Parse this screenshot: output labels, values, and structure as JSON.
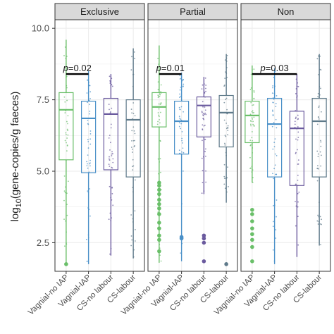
{
  "chart_data": {
    "type": "box",
    "ylabel_prefix": "log",
    "ylabel_sub": "10",
    "ylabel_suffix": "(gene-copies/g faeces)",
    "ylim": [
      1.5,
      10.3
    ],
    "yticks": [
      2.5,
      5.0,
      7.5,
      10.0
    ],
    "ytick_labels": [
      "2.5",
      "5.0",
      "7.5",
      "10.0"
    ],
    "grid": true,
    "categories": [
      "Vagnial-no IAP",
      "Vagnial-IAP",
      "CS-no labour",
      "CS-labour"
    ],
    "category_colors": [
      "#6abf69",
      "#4a90c8",
      "#6a5a9e",
      "#5f7a8a"
    ],
    "panels": [
      {
        "title": "Exclusive",
        "boxes": [
          {
            "category": "Vagnial-no IAP",
            "q1": 5.4,
            "median": 7.15,
            "q3": 7.75,
            "whisker_low": 1.75,
            "whisker_high": 9.6,
            "outliers": [
              1.75
            ]
          },
          {
            "category": "Vagnial-IAP",
            "q1": 4.95,
            "median": 6.85,
            "q3": 7.45,
            "whisker_low": 1.75,
            "whisker_high": 8.5,
            "outliers": []
          },
          {
            "category": "CS-no labour",
            "q1": 5.05,
            "median": 7.0,
            "q3": 7.55,
            "whisker_low": 2.05,
            "whisker_high": 8.4,
            "outliers": []
          },
          {
            "category": "CS-labour",
            "q1": 4.8,
            "median": 6.8,
            "q3": 7.5,
            "whisker_low": 1.95,
            "whisker_high": 9.3,
            "outliers": []
          }
        ],
        "annotations": [
          {
            "text": "p=0.02",
            "from": "Vagnial-no IAP",
            "to": "Vagnial-IAP",
            "y": 8.4
          }
        ]
      },
      {
        "title": "Partial",
        "boxes": [
          {
            "category": "Vagnial-no IAP",
            "q1": 6.55,
            "median": 7.25,
            "q3": 7.75,
            "whisker_low": 1.8,
            "whisker_high": 9.4,
            "outliers": [
              4.6,
              4.5,
              4.35,
              4.2,
              4.0,
              3.85,
              3.7,
              3.5,
              3.2,
              3.0,
              2.75,
              2.6,
              2.2
            ]
          },
          {
            "category": "Vagnial-IAP",
            "q1": 5.6,
            "median": 6.75,
            "q3": 7.45,
            "whisker_low": 1.85,
            "whisker_high": 8.45,
            "outliers": [
              2.65,
              2.7
            ]
          },
          {
            "category": "CS-no labour",
            "q1": 6.2,
            "median": 7.3,
            "q3": 7.6,
            "whisker_low": 4.2,
            "whisker_high": 8.3,
            "outliers": [
              2.75,
              2.65,
              2.5,
              1.85
            ]
          },
          {
            "category": "CS-labour",
            "q1": 5.85,
            "median": 7.05,
            "q3": 7.65,
            "whisker_low": 3.9,
            "whisker_high": 9.1,
            "outliers": [
              1.75
            ]
          }
        ],
        "annotations": [
          {
            "text": "p=0.01",
            "from": "Vagnial-no IAP",
            "to": "Vagnial-IAP",
            "y": 8.4
          }
        ]
      },
      {
        "title": "Non",
        "boxes": [
          {
            "category": "Vagnial-no IAP",
            "q1": 6.0,
            "median": 6.95,
            "q3": 7.45,
            "whisker_low": 4.6,
            "whisker_high": 8.7,
            "outliers": [
              3.65,
              3.5,
              3.25,
              3.0,
              2.8,
              2.6,
              2.35,
              1.85
            ]
          },
          {
            "category": "Vagnial-IAP",
            "q1": 4.8,
            "median": 6.65,
            "q3": 7.55,
            "whisker_low": 1.75,
            "whisker_high": 8.6,
            "outliers": []
          },
          {
            "category": "CS-no labour",
            "q1": 4.5,
            "median": 6.5,
            "q3": 7.1,
            "whisker_low": 2.0,
            "whisker_high": 8.4,
            "outliers": []
          },
          {
            "category": "CS-labour",
            "q1": 4.8,
            "median": 6.75,
            "q3": 7.55,
            "whisker_low": 2.4,
            "whisker_high": 9.1,
            "outliers": []
          }
        ],
        "annotations": [
          {
            "text": "p=0.03",
            "from": "Vagnial-no IAP",
            "to": "CS-no labour",
            "y": 8.4
          }
        ]
      }
    ]
  },
  "colors": {
    "panel_bg": "#ffffff",
    "strip_bg": "#d9d9d9",
    "border": "#333333",
    "grid": "#ebebeb",
    "annotation_line": "#000000"
  }
}
